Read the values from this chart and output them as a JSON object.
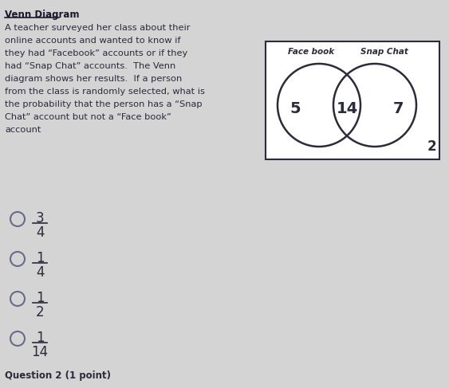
{
  "title": "Venn Diagram",
  "question_text": [
    "A teacher surveyed her class about their",
    "online accounts and wanted to know if",
    "they had “Facebook” accounts or if they",
    "had “Snap Chat” accounts.  The Venn",
    "diagram shows her results.  If a person",
    "from the class is randomly selected, what is",
    "the probability that the person has a “Snap",
    "Chat” account but not a “Face book”",
    "account"
  ],
  "left_label": "Face book",
  "right_label": "Snap Chat",
  "left_only": "5",
  "intersection": "14",
  "right_only": "7",
  "outside": "2",
  "choices": [
    {
      "numerator": "3",
      "denominator": "4"
    },
    {
      "numerator": "1",
      "denominator": "4"
    },
    {
      "numerator": "1",
      "denominator": "2"
    },
    {
      "numerator": "1",
      "denominator": "14"
    }
  ],
  "bg_color": "#d4d4d4",
  "box_color": "#ffffff",
  "text_color": "#2b2b3b",
  "title_color": "#1a1a2e",
  "circle_color": "#2b2b3b",
  "question2_text": "Question 2 (1 point)"
}
